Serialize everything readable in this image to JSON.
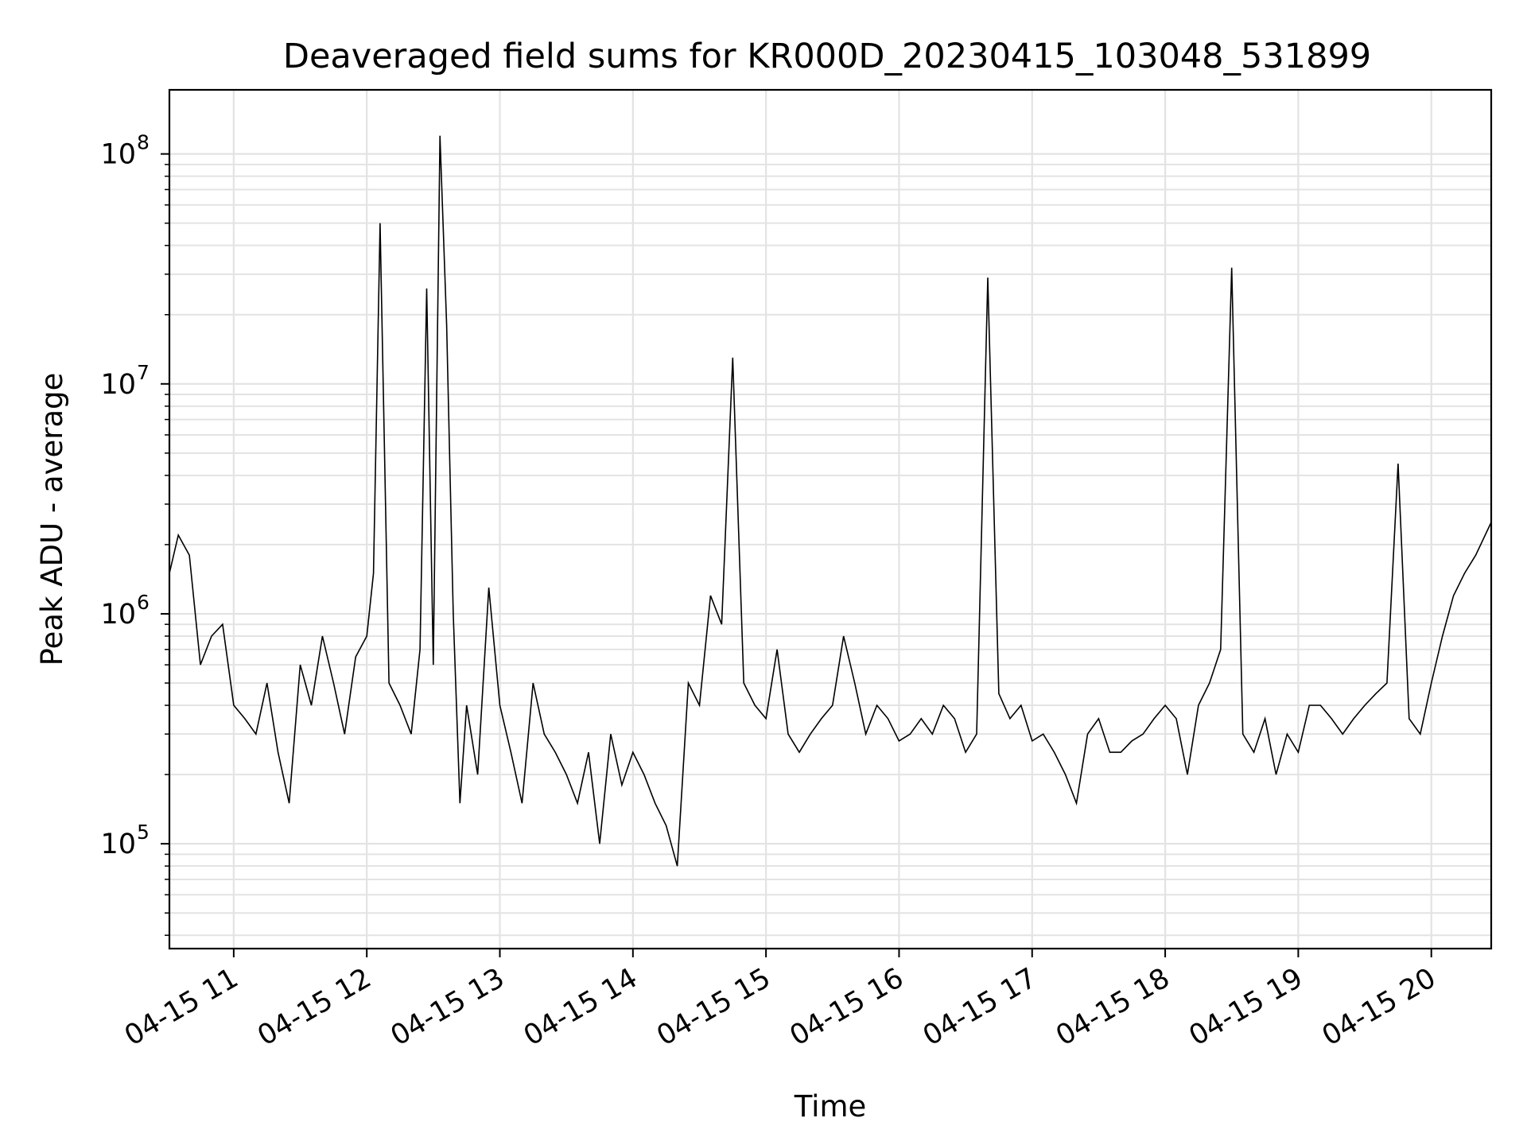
{
  "chart_data": {
    "type": "line",
    "title": "Deaveraged field sums for KR000D_20230415_103048_531899",
    "xlabel": "Time",
    "ylabel": "Peak ADU - average",
    "y_scale": "log",
    "ylim": [
      35000,
      190000000
    ],
    "xlim": [
      "2023-04-15 10:31",
      "2023-04-15 20:27"
    ],
    "grid": true,
    "x_tick_labels": [
      "04-15 11",
      "04-15 12",
      "04-15 13",
      "04-15 14",
      "04-15 15",
      "04-15 16",
      "04-15 17",
      "04-15 18",
      "04-15 19",
      "04-15 20"
    ],
    "y_ticks": [
      {
        "base": "10",
        "exp": "5",
        "value": 100000
      },
      {
        "base": "10",
        "exp": "6",
        "value": 1000000
      },
      {
        "base": "10",
        "exp": "7",
        "value": 10000000
      },
      {
        "base": "10",
        "exp": "8",
        "value": 100000000
      }
    ],
    "line_color": "#000000",
    "series": [
      {
        "x": [
          "2023-04-15 10:31",
          "2023-04-15 10:35",
          "2023-04-15 10:40",
          "2023-04-15 10:45",
          "2023-04-15 10:50",
          "2023-04-15 10:55",
          "2023-04-15 11:00",
          "2023-04-15 11:05",
          "2023-04-15 11:10",
          "2023-04-15 11:15",
          "2023-04-15 11:20",
          "2023-04-15 11:25",
          "2023-04-15 11:30",
          "2023-04-15 11:35",
          "2023-04-15 11:40",
          "2023-04-15 11:45",
          "2023-04-15 11:50",
          "2023-04-15 11:55",
          "2023-04-15 12:00",
          "2023-04-15 12:03",
          "2023-04-15 12:06",
          "2023-04-15 12:10",
          "2023-04-15 12:15",
          "2023-04-15 12:20",
          "2023-04-15 12:24",
          "2023-04-15 12:27",
          "2023-04-15 12:30",
          "2023-04-15 12:33",
          "2023-04-15 12:36",
          "2023-04-15 12:39",
          "2023-04-15 12:42",
          "2023-04-15 12:45",
          "2023-04-15 12:50",
          "2023-04-15 12:55",
          "2023-04-15 13:00",
          "2023-04-15 13:05",
          "2023-04-15 13:10",
          "2023-04-15 13:15",
          "2023-04-15 13:20",
          "2023-04-15 13:25",
          "2023-04-15 13:30",
          "2023-04-15 13:35",
          "2023-04-15 13:40",
          "2023-04-15 13:45",
          "2023-04-15 13:50",
          "2023-04-15 13:55",
          "2023-04-15 14:00",
          "2023-04-15 14:05",
          "2023-04-15 14:10",
          "2023-04-15 14:15",
          "2023-04-15 14:20",
          "2023-04-15 14:25",
          "2023-04-15 14:30",
          "2023-04-15 14:35",
          "2023-04-15 14:40",
          "2023-04-15 14:45",
          "2023-04-15 14:50",
          "2023-04-15 14:55",
          "2023-04-15 15:00",
          "2023-04-15 15:05",
          "2023-04-15 15:10",
          "2023-04-15 15:15",
          "2023-04-15 15:20",
          "2023-04-15 15:25",
          "2023-04-15 15:30",
          "2023-04-15 15:35",
          "2023-04-15 15:40",
          "2023-04-15 15:45",
          "2023-04-15 15:50",
          "2023-04-15 15:55",
          "2023-04-15 16:00",
          "2023-04-15 16:05",
          "2023-04-15 16:10",
          "2023-04-15 16:15",
          "2023-04-15 16:20",
          "2023-04-15 16:25",
          "2023-04-15 16:30",
          "2023-04-15 16:35",
          "2023-04-15 16:40",
          "2023-04-15 16:45",
          "2023-04-15 16:50",
          "2023-04-15 16:55",
          "2023-04-15 17:00",
          "2023-04-15 17:05",
          "2023-04-15 17:10",
          "2023-04-15 17:15",
          "2023-04-15 17:20",
          "2023-04-15 17:25",
          "2023-04-15 17:30",
          "2023-04-15 17:35",
          "2023-04-15 17:40",
          "2023-04-15 17:45",
          "2023-04-15 17:50",
          "2023-04-15 17:55",
          "2023-04-15 18:00",
          "2023-04-15 18:05",
          "2023-04-15 18:10",
          "2023-04-15 18:15",
          "2023-04-15 18:20",
          "2023-04-15 18:25",
          "2023-04-15 18:30",
          "2023-04-15 18:35",
          "2023-04-15 18:40",
          "2023-04-15 18:45",
          "2023-04-15 18:50",
          "2023-04-15 18:55",
          "2023-04-15 19:00",
          "2023-04-15 19:05",
          "2023-04-15 19:10",
          "2023-04-15 19:15",
          "2023-04-15 19:20",
          "2023-04-15 19:25",
          "2023-04-15 19:30",
          "2023-04-15 19:35",
          "2023-04-15 19:40",
          "2023-04-15 19:45",
          "2023-04-15 19:50",
          "2023-04-15 19:55",
          "2023-04-15 20:00",
          "2023-04-15 20:05",
          "2023-04-15 20:10",
          "2023-04-15 20:15",
          "2023-04-15 20:20",
          "2023-04-15 20:27"
        ],
        "y": [
          1500000,
          2200000,
          1800000,
          600000,
          800000,
          900000,
          400000,
          350000,
          300000,
          500000,
          250000,
          150000,
          600000,
          400000,
          800000,
          500000,
          300000,
          650000,
          800000,
          1500000,
          50000000,
          500000,
          400000,
          300000,
          700000,
          26000000,
          600000,
          120000000,
          18000000,
          1000000,
          150000,
          400000,
          200000,
          1300000,
          400000,
          250000,
          150000,
          500000,
          300000,
          250000,
          200000,
          150000,
          250000,
          100000,
          300000,
          180000,
          250000,
          200000,
          150000,
          120000,
          80000,
          500000,
          400000,
          1200000,
          900000,
          13000000,
          500000,
          400000,
          350000,
          700000,
          300000,
          250000,
          300000,
          350000,
          400000,
          800000,
          500000,
          300000,
          400000,
          350000,
          280000,
          300000,
          350000,
          300000,
          400000,
          350000,
          250000,
          300000,
          29000000,
          450000,
          350000,
          400000,
          280000,
          300000,
          250000,
          200000,
          150000,
          300000,
          350000,
          250000,
          250000,
          280000,
          300000,
          350000,
          400000,
          350000,
          200000,
          400000,
          500000,
          700000,
          32000000,
          300000,
          250000,
          350000,
          200000,
          300000,
          250000,
          400000,
          400000,
          350000,
          300000,
          350000,
          400000,
          450000,
          500000,
          4500000,
          350000,
          300000,
          500000,
          800000,
          1200000,
          1500000,
          1800000,
          2500000
        ]
      }
    ]
  }
}
